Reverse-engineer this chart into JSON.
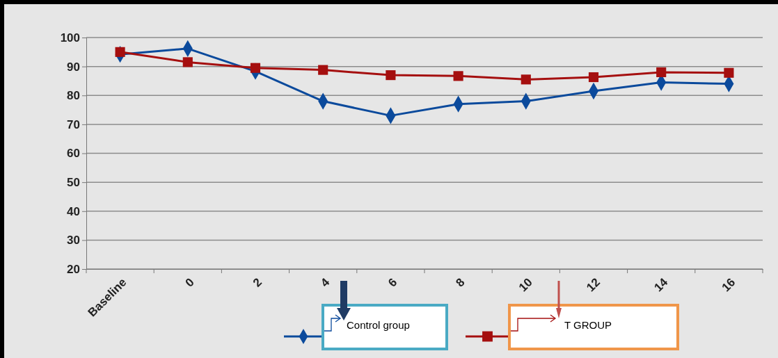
{
  "chart_data": {
    "type": "line",
    "categories": [
      "Baseline",
      "0",
      "2",
      "4",
      "6",
      "8",
      "10",
      "12",
      "14",
      "16"
    ],
    "series": [
      {
        "name": "Control group",
        "color": "#0b4a9c",
        "values": [
          94.2,
          96.2,
          88.3,
          78,
          73,
          77,
          78,
          81.5,
          84.5,
          84
        ],
        "marker": "diamond"
      },
      {
        "name": "T GROUP",
        "color": "#a50f0f",
        "values": [
          95,
          91.5,
          89.5,
          88.8,
          87,
          86.7,
          85.5,
          86.3,
          88,
          87.8
        ],
        "marker": "square"
      }
    ],
    "ylim": [
      20,
      100
    ],
    "yticks": [
      20,
      30,
      40,
      50,
      60,
      70,
      80,
      90,
      100
    ],
    "grid": "y",
    "legend": "bottom"
  }
}
